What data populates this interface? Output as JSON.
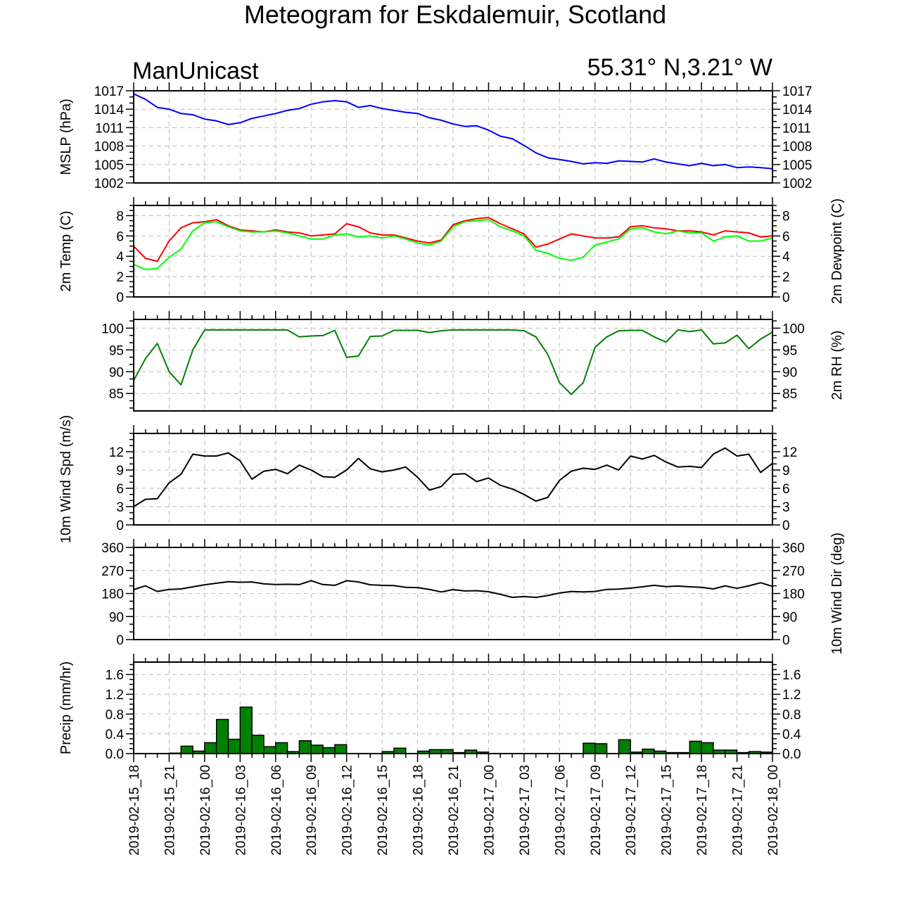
{
  "title": "Meteogram for Eskdalemuir, Scotland",
  "subtitle_left": "ManUnicast",
  "subtitle_right": "55.31° N,3.21° W",
  "time_labels": [
    "2019-02-15_18",
    "2019-02-15_21",
    "2019-02-16_00",
    "2019-02-16_03",
    "2019-02-16_06",
    "2019-02-16_09",
    "2019-02-16_12",
    "2019-02-16_15",
    "2019-02-16_18",
    "2019-02-16_21",
    "2019-02-17_00",
    "2019-02-17_03",
    "2019-02-17_06",
    "2019-02-17_09",
    "2019-02-17_12",
    "2019-02-17_15",
    "2019-02-17_18",
    "2019-02-17_21",
    "2019-02-18_00"
  ],
  "chart_data": [
    {
      "id": "mslp",
      "type": "line",
      "ylabel": "MSLP (hPa)",
      "ylabel_right": "",
      "ylim": [
        1002,
        1017
      ],
      "yticks": [
        1002,
        1005,
        1008,
        1011,
        1014,
        1017
      ],
      "tick_labels_right": true,
      "series": [
        {
          "color": "#0000ff",
          "values": [
            1016.5,
            1015.6,
            1014.3,
            1014.0,
            1013.3,
            1013.1,
            1012.4,
            1012.1,
            1011.5,
            1011.8,
            1012.5,
            1012.9,
            1013.3,
            1013.8,
            1014.1,
            1014.8,
            1015.2,
            1015.4,
            1015.2,
            1014.3,
            1014.6,
            1014.1,
            1013.8,
            1013.5,
            1013.3,
            1012.6,
            1012.2,
            1011.6,
            1011.2,
            1011.3,
            1010.6,
            1009.6,
            1009.2,
            1008.1,
            1006.9,
            1006.1,
            1005.8,
            1005.5,
            1005.1,
            1005.3,
            1005.2,
            1005.6,
            1005.5,
            1005.4,
            1005.9,
            1005.4,
            1005.1,
            1004.8,
            1005.2,
            1004.8,
            1005.0,
            1004.5,
            1004.6,
            1004.5,
            1004.3
          ]
        }
      ]
    },
    {
      "id": "temp",
      "type": "line",
      "ylabel": "2m Temp (C)",
      "ylabel_right": "2m Dewpoint (C)",
      "ylim": [
        0,
        9
      ],
      "yticks": [
        0.0,
        2.0,
        4.0,
        6.0,
        8.0
      ],
      "tick_labels_right": true,
      "series": [
        {
          "color": "#ff0000",
          "values": [
            5.0,
            3.8,
            3.5,
            5.5,
            6.8,
            7.3,
            7.4,
            7.6,
            7.0,
            6.6,
            6.5,
            6.4,
            6.6,
            6.4,
            6.3,
            6.0,
            6.1,
            6.2,
            7.2,
            6.9,
            6.3,
            6.1,
            6.1,
            5.8,
            5.5,
            5.3,
            5.6,
            7.1,
            7.5,
            7.7,
            7.8,
            7.2,
            6.7,
            6.2,
            4.9,
            5.2,
            5.7,
            6.2,
            6.0,
            5.8,
            5.8,
            5.9,
            6.9,
            7.0,
            6.8,
            6.7,
            6.5,
            6.5,
            6.4,
            6.1,
            6.5,
            6.4,
            6.3,
            5.9,
            6.0
          ]
        },
        {
          "color": "#00ff00",
          "values": [
            3.2,
            2.7,
            2.8,
            3.9,
            4.7,
            6.5,
            7.3,
            7.4,
            6.9,
            6.5,
            6.4,
            6.4,
            6.5,
            6.3,
            6.0,
            5.7,
            5.7,
            6.1,
            6.2,
            5.9,
            6.0,
            5.8,
            6.0,
            5.7,
            5.3,
            5.1,
            5.5,
            6.9,
            7.4,
            7.5,
            7.6,
            6.9,
            6.5,
            6.0,
            4.6,
            4.3,
            3.8,
            3.6,
            3.9,
            5.1,
            5.4,
            5.7,
            6.7,
            6.8,
            6.4,
            6.2,
            6.5,
            6.3,
            6.3,
            5.5,
            5.9,
            6.0,
            5.5,
            5.5,
            5.8
          ]
        }
      ]
    },
    {
      "id": "rh",
      "type": "line",
      "ylabel": "",
      "ylabel_right": "2m RH (%)",
      "ylim": [
        81,
        102
      ],
      "yticks": [
        85,
        90,
        95,
        100
      ],
      "tick_labels_right": true,
      "series": [
        {
          "color": "#008000",
          "values": [
            88,
            93,
            96.5,
            90,
            87,
            95,
            99.6,
            99.6,
            99.6,
            99.6,
            99.6,
            99.6,
            99.6,
            99.6,
            98,
            98.2,
            98.3,
            99.5,
            93.3,
            93.6,
            98.1,
            98.2,
            99.5,
            99.5,
            99.5,
            99.0,
            99.4,
            99.6,
            99.6,
            99.6,
            99.6,
            99.6,
            99.6,
            99.4,
            98,
            94,
            87.5,
            84.8,
            87.5,
            95.6,
            98,
            99.4,
            99.5,
            99.5,
            98.0,
            96.8,
            99.6,
            99.2,
            99.6,
            96.4,
            96.6,
            98.4,
            95.3,
            97.5,
            99.1
          ]
        }
      ]
    },
    {
      "id": "wspd",
      "type": "line",
      "ylabel": "10m Wind Spd (m/s)",
      "ylabel_right": "",
      "ylim": [
        0,
        15
      ],
      "yticks": [
        0,
        3,
        6,
        9,
        12
      ],
      "tick_labels_right": true,
      "series": [
        {
          "color": "#000000",
          "values": [
            3.0,
            4.2,
            4.3,
            6.9,
            8.3,
            11.6,
            11.3,
            11.3,
            11.8,
            10.5,
            7.5,
            8.8,
            9.1,
            8.4,
            9.8,
            9.0,
            7.9,
            7.8,
            9.0,
            10.9,
            9.2,
            8.7,
            9.0,
            9.5,
            7.8,
            5.7,
            6.3,
            8.3,
            8.4,
            7.1,
            7.7,
            6.5,
            5.9,
            5.0,
            3.9,
            4.5,
            7.3,
            8.8,
            9.3,
            9.1,
            9.8,
            9.0,
            11.3,
            10.8,
            11.4,
            10.3,
            9.5,
            9.6,
            9.4,
            11.6,
            12.6,
            11.3,
            11.6,
            8.6,
            10.1
          ]
        }
      ]
    },
    {
      "id": "wdir",
      "type": "line",
      "ylabel": "",
      "ylabel_right": "10m Wind Dir (deg)",
      "ylim": [
        0,
        360
      ],
      "yticks": [
        0,
        90,
        180,
        270,
        360
      ],
      "tick_labels_right": true,
      "series": [
        {
          "color": "#000000",
          "values": [
            195,
            210,
            188,
            196,
            198,
            206,
            214,
            220,
            226,
            224,
            225,
            218,
            215,
            216,
            215,
            230,
            215,
            212,
            230,
            225,
            214,
            212,
            211,
            204,
            203,
            196,
            186,
            195,
            190,
            191,
            187,
            177,
            165,
            168,
            165,
            172,
            182,
            188,
            186,
            188,
            196,
            197,
            201,
            206,
            212,
            207,
            209,
            206,
            204,
            198,
            210,
            200,
            210,
            222,
            208
          ]
        }
      ]
    },
    {
      "id": "precip",
      "type": "bar",
      "ylabel": "Precip (mm/hr)",
      "ylabel_right": "",
      "ylim": [
        0,
        1.85
      ],
      "yticks": [
        0.0,
        0.4,
        0.8,
        1.2,
        1.6
      ],
      "tick_labels_right": true,
      "bar_color": "#008000",
      "values": [
        0,
        0,
        0,
        0.01,
        0.15,
        0.05,
        0.22,
        0.69,
        0.29,
        0.94,
        0.37,
        0.14,
        0.22,
        0.04,
        0.26,
        0.17,
        0.12,
        0.18,
        0,
        0,
        0,
        0.04,
        0.11,
        0,
        0.05,
        0.08,
        0.08,
        0.02,
        0.07,
        0.03,
        0,
        0,
        0,
        0,
        0,
        0,
        0,
        0,
        0.21,
        0.2,
        0,
        0.28,
        0.03,
        0.09,
        0.05,
        0.02,
        0.02,
        0.25,
        0.22,
        0.07,
        0.07,
        0.02,
        0.04,
        0.03,
        0
      ]
    }
  ]
}
